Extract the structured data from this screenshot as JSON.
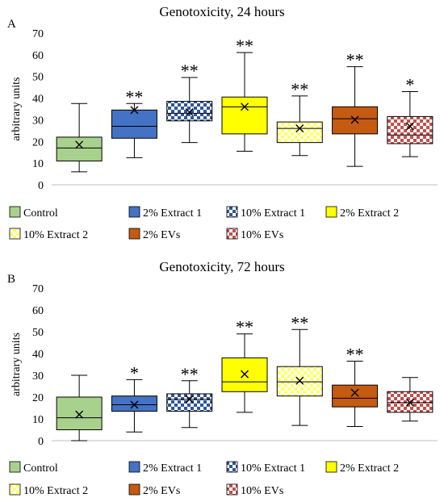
{
  "chart_data": [
    {
      "panel_label": "A",
      "type": "box",
      "title": "Genotoxicity, 24 hours",
      "ylabel": "arbitrary units",
      "ylim": [
        0,
        70
      ],
      "yticks": [
        0,
        10,
        20,
        30,
        40,
        50,
        60,
        70
      ],
      "grid": false,
      "legend_position": "bottom",
      "series": [
        {
          "name": "Control",
          "min": 6,
          "q1": 11,
          "median": 17,
          "q3": 22,
          "max": 37.5,
          "mean": 18.5,
          "sig": ""
        },
        {
          "name": "2% Extract 1",
          "min": 12.5,
          "q1": 21.5,
          "median": 27,
          "q3": 34.5,
          "max": 37.5,
          "mean": 34.5,
          "sig": "**"
        },
        {
          "name": "10% Extract 1",
          "min": 19.5,
          "q1": 29.5,
          "median": 33,
          "q3": 38.5,
          "max": 49.5,
          "mean": 33.5,
          "sig": "**"
        },
        {
          "name": "2% Extract 2",
          "min": 15.5,
          "q1": 23.5,
          "median": 36,
          "q3": 40.5,
          "max": 61,
          "mean": 36,
          "sig": "**"
        },
        {
          "name": "10% Extract 2",
          "min": 13.5,
          "q1": 19.5,
          "median": 26,
          "q3": 29,
          "max": 41,
          "mean": 26,
          "sig": "**"
        },
        {
          "name": "2% EVs",
          "min": 8.5,
          "q1": 23.5,
          "median": 30.5,
          "q3": 36,
          "max": 54.5,
          "mean": 30,
          "sig": "**"
        },
        {
          "name": "10% EVs",
          "min": 13,
          "q1": 19,
          "median": 23,
          "q3": 31.5,
          "max": 43,
          "mean": 27,
          "sig": "*"
        }
      ]
    },
    {
      "panel_label": "B",
      "type": "box",
      "title": "Genotoxicity, 72 hours",
      "ylabel": "arbitrary units",
      "ylim": [
        0,
        70
      ],
      "yticks": [
        0,
        10,
        20,
        30,
        40,
        50,
        60,
        70
      ],
      "grid": false,
      "legend_position": "bottom",
      "series": [
        {
          "name": "Control",
          "min": 0,
          "q1": 5,
          "median": 10.5,
          "q3": 20,
          "max": 30,
          "mean": 12,
          "sig": ""
        },
        {
          "name": "2% Extract 1",
          "min": 4,
          "q1": 13.5,
          "median": 16.5,
          "q3": 20.5,
          "max": 28,
          "mean": 16.5,
          "sig": "*"
        },
        {
          "name": "10% Extract 1",
          "min": 6,
          "q1": 13.5,
          "median": 19,
          "q3": 21.5,
          "max": 27.5,
          "mean": 19,
          "sig": "**"
        },
        {
          "name": "2% Extract 2",
          "min": 13,
          "q1": 22.5,
          "median": 27,
          "q3": 38,
          "max": 49,
          "mean": 30.5,
          "sig": "**"
        },
        {
          "name": "10% Extract 2",
          "min": 7,
          "q1": 20.5,
          "median": 27,
          "q3": 34,
          "max": 51,
          "mean": 27.5,
          "sig": "**"
        },
        {
          "name": "2% EVs",
          "min": 6.5,
          "q1": 15.5,
          "median": 19.5,
          "q3": 25.5,
          "max": 36.5,
          "mean": 22,
          "sig": "**"
        },
        {
          "name": "10% EVs",
          "min": 9,
          "q1": 13,
          "median": 17.5,
          "q3": 22.5,
          "max": 29,
          "mean": 17.5,
          "sig": ""
        }
      ]
    }
  ],
  "styles": [
    {
      "name": "Control",
      "color": "#a9d18e",
      "pattern": "solid"
    },
    {
      "name": "2% Extract 1",
      "color": "#4472c4",
      "pattern": "solid"
    },
    {
      "name": "10% Extract 1",
      "color": "#2f5597",
      "pattern": "checker"
    },
    {
      "name": "2% Extract 2",
      "color": "#ffff00",
      "pattern": "solid"
    },
    {
      "name": "10% Extract 2",
      "color": "#ffff66",
      "pattern": "checker"
    },
    {
      "name": "2% EVs",
      "color": "#c55a11",
      "pattern": "solid"
    },
    {
      "name": "10% EVs",
      "color": "#c0504d",
      "pattern": "checker"
    }
  ],
  "mean_marker": "x"
}
